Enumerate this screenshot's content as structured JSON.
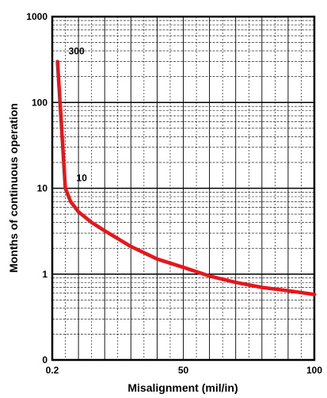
{
  "chart_data": {
    "type": "line",
    "title": "",
    "xlabel": "Misalignment (mil/in)",
    "ylabel": "Months of continuous operation",
    "x_scale": "linear",
    "y_scale": "log",
    "xlim": [
      0,
      100
    ],
    "ylim": [
      0.1,
      1000
    ],
    "grid": true,
    "x_tick_labels": [
      {
        "value": 0,
        "label": "0.2"
      },
      {
        "value": 50,
        "label": "50"
      },
      {
        "value": 100,
        "label": "100"
      }
    ],
    "y_tick_labels": [
      {
        "value": 0.1,
        "label": "0"
      },
      {
        "value": 1,
        "label": "1"
      },
      {
        "value": 10,
        "label": "10"
      },
      {
        "value": 100,
        "label": "100"
      },
      {
        "value": 1000,
        "label": "1000"
      }
    ],
    "series": [
      {
        "color": "#e8161b",
        "points": [
          {
            "x": 2,
            "y": 300
          },
          {
            "x": 5,
            "y": 10
          },
          {
            "x": 7,
            "y": 7
          },
          {
            "x": 10,
            "y": 5.3
          },
          {
            "x": 15,
            "y": 4
          },
          {
            "x": 20,
            "y": 3.2
          },
          {
            "x": 30,
            "y": 2.1
          },
          {
            "x": 40,
            "y": 1.5
          },
          {
            "x": 50,
            "y": 1.2
          },
          {
            "x": 60,
            "y": 0.95
          },
          {
            "x": 70,
            "y": 0.8
          },
          {
            "x": 80,
            "y": 0.7
          },
          {
            "x": 90,
            "y": 0.64
          },
          {
            "x": 100,
            "y": 0.58
          }
        ]
      }
    ],
    "annotations": [
      {
        "x": 2,
        "y": 300,
        "label": "300"
      },
      {
        "x": 5,
        "y": 10,
        "label": "10"
      }
    ]
  }
}
